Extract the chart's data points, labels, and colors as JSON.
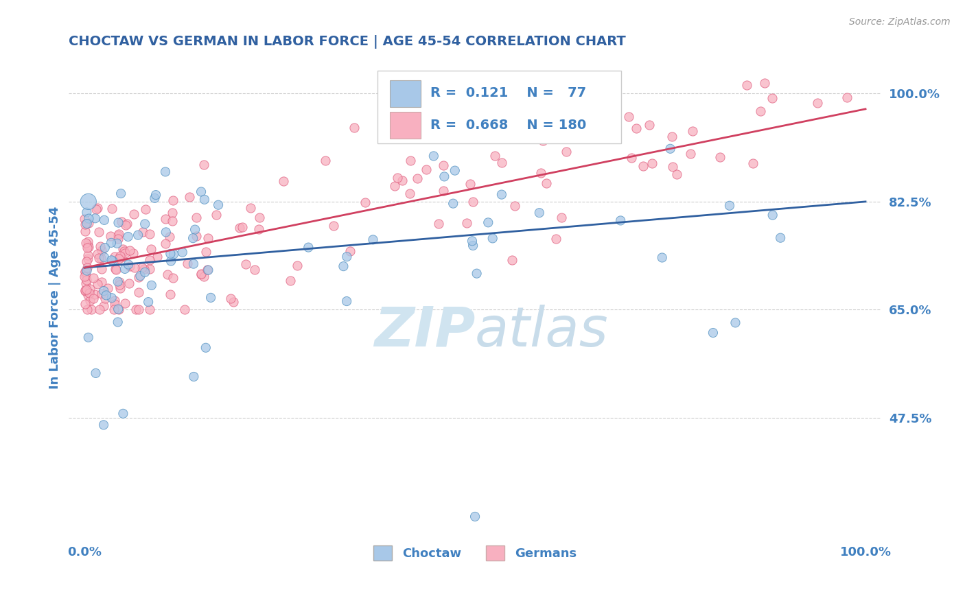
{
  "title": "CHOCTAW VS GERMAN IN LABOR FORCE | AGE 45-54 CORRELATION CHART",
  "source_text": "Source: ZipAtlas.com",
  "ylabel": "In Labor Force | Age 45-54",
  "xlim": [
    -0.02,
    1.02
  ],
  "ylim": [
    0.28,
    1.06
  ],
  "yticks": [
    0.475,
    0.65,
    0.825,
    1.0
  ],
  "ytick_labels": [
    "47.5%",
    "65.0%",
    "82.5%",
    "100.0%"
  ],
  "xtick_labels": [
    "0.0%",
    "100.0%"
  ],
  "xticks": [
    0.0,
    1.0
  ],
  "blue_fill": "#a8c8e8",
  "blue_edge": "#5090c0",
  "pink_fill": "#f8b0c0",
  "pink_edge": "#e06080",
  "blue_line_color": "#3060a0",
  "pink_line_color": "#d04060",
  "text_color": "#4080c0",
  "title_color": "#3060a0",
  "grid_color": "#cccccc",
  "watermark_color": "#d0e4f0",
  "legend_R_blue": "0.121",
  "legend_N_blue": "77",
  "legend_R_pink": "0.668",
  "legend_N_pink": "180",
  "blue_trend": [
    0.718,
    0.825
  ],
  "pink_trend": [
    0.718,
    0.975
  ]
}
